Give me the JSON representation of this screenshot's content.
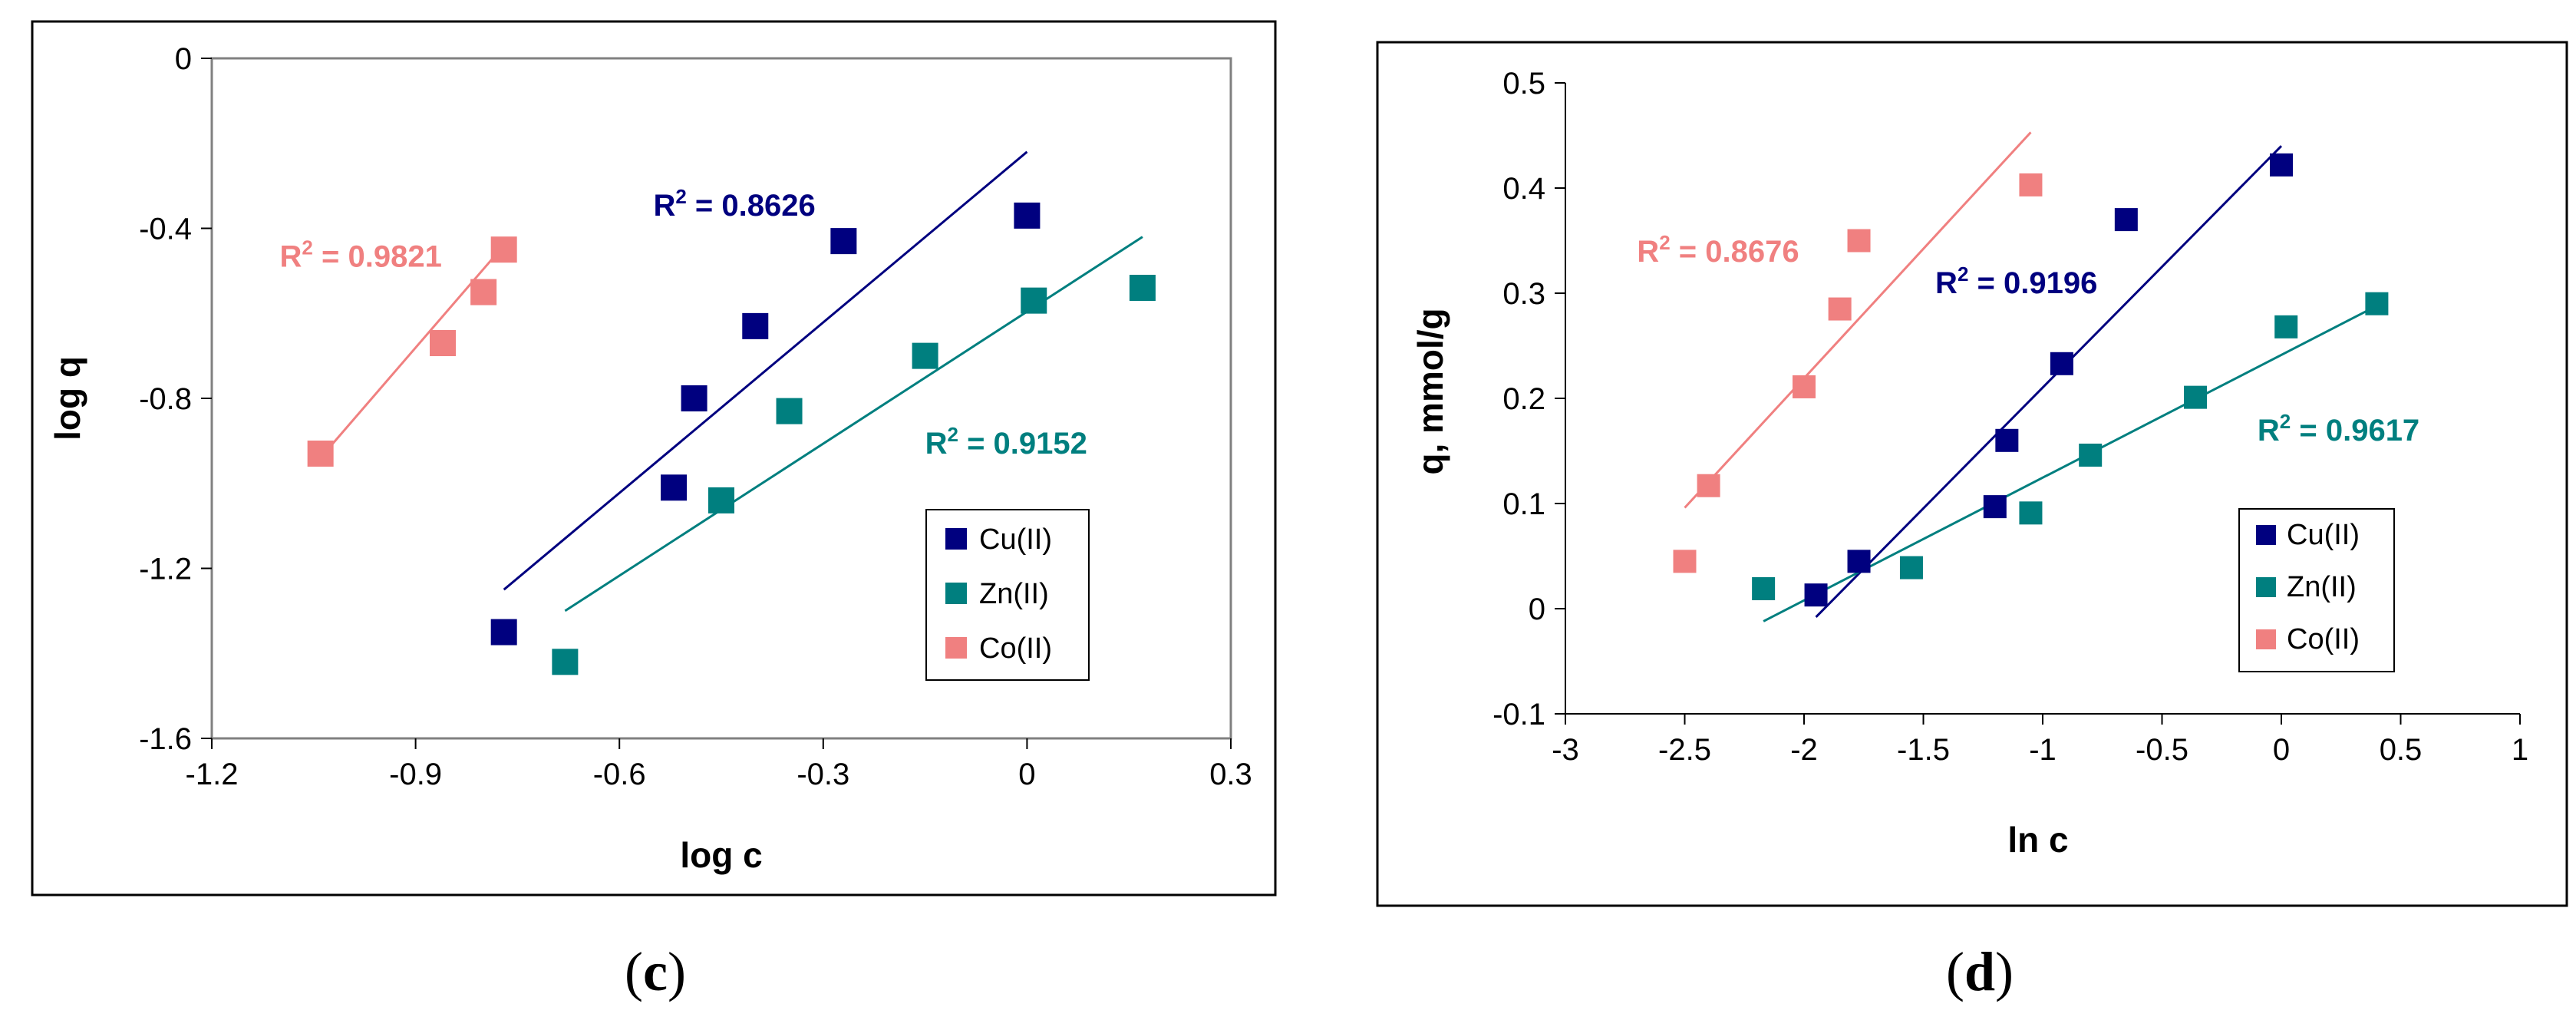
{
  "colors": {
    "cu": "#00007f",
    "zn": "#007f7f",
    "co": "#f08080"
  },
  "chart_data": [
    {
      "type": "scatter",
      "caption": "c",
      "xlabel": "log c",
      "ylabel": "log q",
      "xlim": [
        -1.2,
        0.3
      ],
      "ylim": [
        -1.6,
        0
      ],
      "xticks": [
        "-1.2",
        "-0.9",
        "-0.6",
        "-0.3",
        "0",
        "0.3"
      ],
      "yticks": [
        "0",
        "-0.4",
        "-0.8",
        "-1.2",
        "-1.6"
      ],
      "legend": [
        "Cu(II)",
        "Zn(II)",
        "Co(II)"
      ],
      "series": [
        {
          "name": "Cu(II)",
          "points": [
            [
              -0.77,
              -1.35
            ],
            [
              -0.52,
              -1.01
            ],
            [
              -0.49,
              -0.8
            ],
            [
              -0.4,
              -0.63
            ],
            [
              -0.27,
              -0.43
            ],
            [
              0.0,
              -0.37
            ]
          ],
          "fit": [
            [
              -0.77,
              -1.25
            ],
            [
              0.0,
              -0.22
            ]
          ],
          "r2": {
            "label": "R",
            "value": " = 0.8626",
            "at": [
              -0.55,
              -0.37
            ]
          }
        },
        {
          "name": "Zn(II)",
          "points": [
            [
              -0.68,
              -1.42
            ],
            [
              -0.45,
              -1.04
            ],
            [
              -0.35,
              -0.83
            ],
            [
              -0.15,
              -0.7
            ],
            [
              0.01,
              -0.57
            ],
            [
              0.17,
              -0.54
            ]
          ],
          "fit": [
            [
              -0.68,
              -1.3
            ],
            [
              0.17,
              -0.42
            ]
          ],
          "r2": {
            "label": "R",
            "value": " = 0.9152",
            "at": [
              -0.15,
              -0.93
            ]
          }
        },
        {
          "name": "Co(II)",
          "points": [
            [
              -1.04,
              -0.93
            ],
            [
              -0.86,
              -0.67
            ],
            [
              -0.8,
              -0.55
            ],
            [
              -0.77,
              -0.45
            ]
          ],
          "fit": [
            [
              -1.04,
              -0.94
            ],
            [
              -0.77,
              -0.44
            ]
          ],
          "r2": {
            "label": "R",
            "value": " = 0.9821",
            "at": [
              -1.1,
              -0.49
            ]
          }
        }
      ]
    },
    {
      "type": "scatter",
      "caption": "d",
      "xlabel": "ln c",
      "ylabel": "q, mmol/g",
      "xlim": [
        -3,
        1
      ],
      "ylim": [
        -0.1,
        0.5
      ],
      "xticks": [
        "-3",
        "-2.5",
        "-2",
        "-1.5",
        "-1",
        "-0.5",
        "0",
        "0.5",
        "1"
      ],
      "yticks": [
        "0.5",
        "0.4",
        "0.3",
        "0.2",
        "0.1",
        "0",
        "-0.1"
      ],
      "legend": [
        "Cu(II)",
        "Zn(II)",
        "Co(II)"
      ],
      "series": [
        {
          "name": "Cu(II)",
          "points": [
            [
              -1.95,
              0.013
            ],
            [
              -1.77,
              0.045
            ],
            [
              -1.2,
              0.097
            ],
            [
              -1.15,
              0.16
            ],
            [
              -0.92,
              0.233
            ],
            [
              -0.65,
              0.37
            ],
            [
              0.0,
              0.422
            ]
          ],
          "fit": [
            [
              -1.95,
              -0.008
            ],
            [
              0.0,
              0.44
            ]
          ],
          "r2": {
            "label": "R",
            "value": " = 0.9196",
            "at": [
              -1.45,
              0.3
            ]
          }
        },
        {
          "name": "Zn(II)",
          "points": [
            [
              -2.17,
              0.019
            ],
            [
              -1.55,
              0.039
            ],
            [
              -1.05,
              0.091
            ],
            [
              -0.8,
              0.146
            ],
            [
              -0.36,
              0.201
            ],
            [
              0.02,
              0.268
            ],
            [
              0.4,
              0.29
            ]
          ],
          "fit": [
            [
              -2.17,
              -0.012
            ],
            [
              0.4,
              0.288
            ]
          ],
          "r2": {
            "label": "R",
            "value": " = 0.9617",
            "at": [
              -0.1,
              0.16
            ]
          }
        },
        {
          "name": "Co(II)",
          "points": [
            [
              -2.5,
              0.045
            ],
            [
              -2.4,
              0.117
            ],
            [
              -2.0,
              0.211
            ],
            [
              -1.85,
              0.285
            ],
            [
              -1.77,
              0.35
            ],
            [
              -1.05,
              0.403
            ]
          ],
          "fit": [
            [
              -2.5,
              0.096
            ],
            [
              -1.05,
              0.453
            ]
          ],
          "r2": {
            "label": "R",
            "value": " = 0.8676",
            "at": [
              -2.7,
              0.33
            ]
          }
        }
      ]
    }
  ]
}
